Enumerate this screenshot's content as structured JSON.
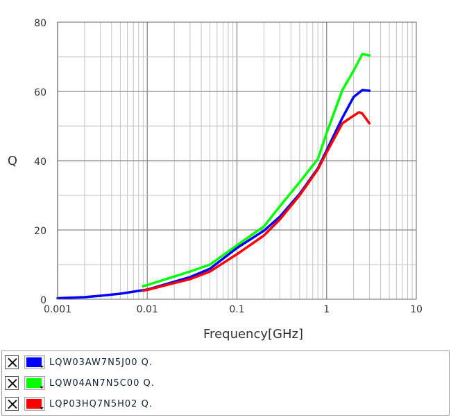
{
  "chart_data": {
    "type": "line",
    "title": "",
    "xlabel": "Frequency[GHz]",
    "ylabel": "Q",
    "xscale": "log",
    "xlim": [
      0.001,
      10
    ],
    "ylim": [
      0,
      80
    ],
    "xticks": [
      "0.001",
      "0.01",
      "0.1",
      "1",
      "10"
    ],
    "yticks": [
      "0",
      "20",
      "40",
      "60",
      "80"
    ],
    "grid": true,
    "legend": "bottom",
    "series": [
      {
        "name": "LQW03AW7N5J00  Q.",
        "color": "#0000ff",
        "x": [
          0.001,
          0.002,
          0.003,
          0.005,
          0.01,
          0.03,
          0.05,
          0.1,
          0.2,
          0.3,
          0.5,
          0.8,
          1,
          1.5,
          2,
          2.5,
          3
        ],
        "y": [
          0.3,
          0.6,
          1.0,
          1.6,
          2.8,
          6.4,
          8.8,
          14.8,
          19.8,
          23.8,
          30.4,
          37.8,
          43,
          52.4,
          58.4,
          60.4,
          60.2
        ]
      },
      {
        "name": "LQW04AN7N5C00  Q.",
        "color": "#00ff00",
        "x": [
          0.009,
          0.01,
          0.03,
          0.05,
          0.1,
          0.2,
          0.3,
          0.5,
          0.8,
          1,
          1.5,
          2,
          2.5,
          3
        ],
        "y": [
          3.8,
          4.1,
          8,
          10,
          15.6,
          21,
          26.8,
          33.8,
          40.5,
          48,
          60.4,
          66,
          70.8,
          70.4
        ]
      },
      {
        "name": "LQP03HQ7N5H02  Q.",
        "color": "#ff0000",
        "x": [
          0.009,
          0.01,
          0.03,
          0.05,
          0.1,
          0.2,
          0.3,
          0.5,
          0.8,
          1,
          1.5,
          2,
          2.3,
          2.5,
          3
        ],
        "y": [
          2.5,
          2.7,
          5.8,
          8,
          13,
          18.4,
          23,
          30,
          37.5,
          42.4,
          50.8,
          53,
          54,
          53.6,
          50.8
        ]
      }
    ]
  },
  "legend": {
    "items": [
      {
        "label": "LQW03AW7N5J00  Q.",
        "color": "#0000ff",
        "checked": true
      },
      {
        "label": "LQW04AN7N5C00  Q.",
        "color": "#00ff00",
        "checked": true
      },
      {
        "label": "LQP03HQ7N5H02  Q.",
        "color": "#ff0000",
        "checked": true
      }
    ]
  }
}
